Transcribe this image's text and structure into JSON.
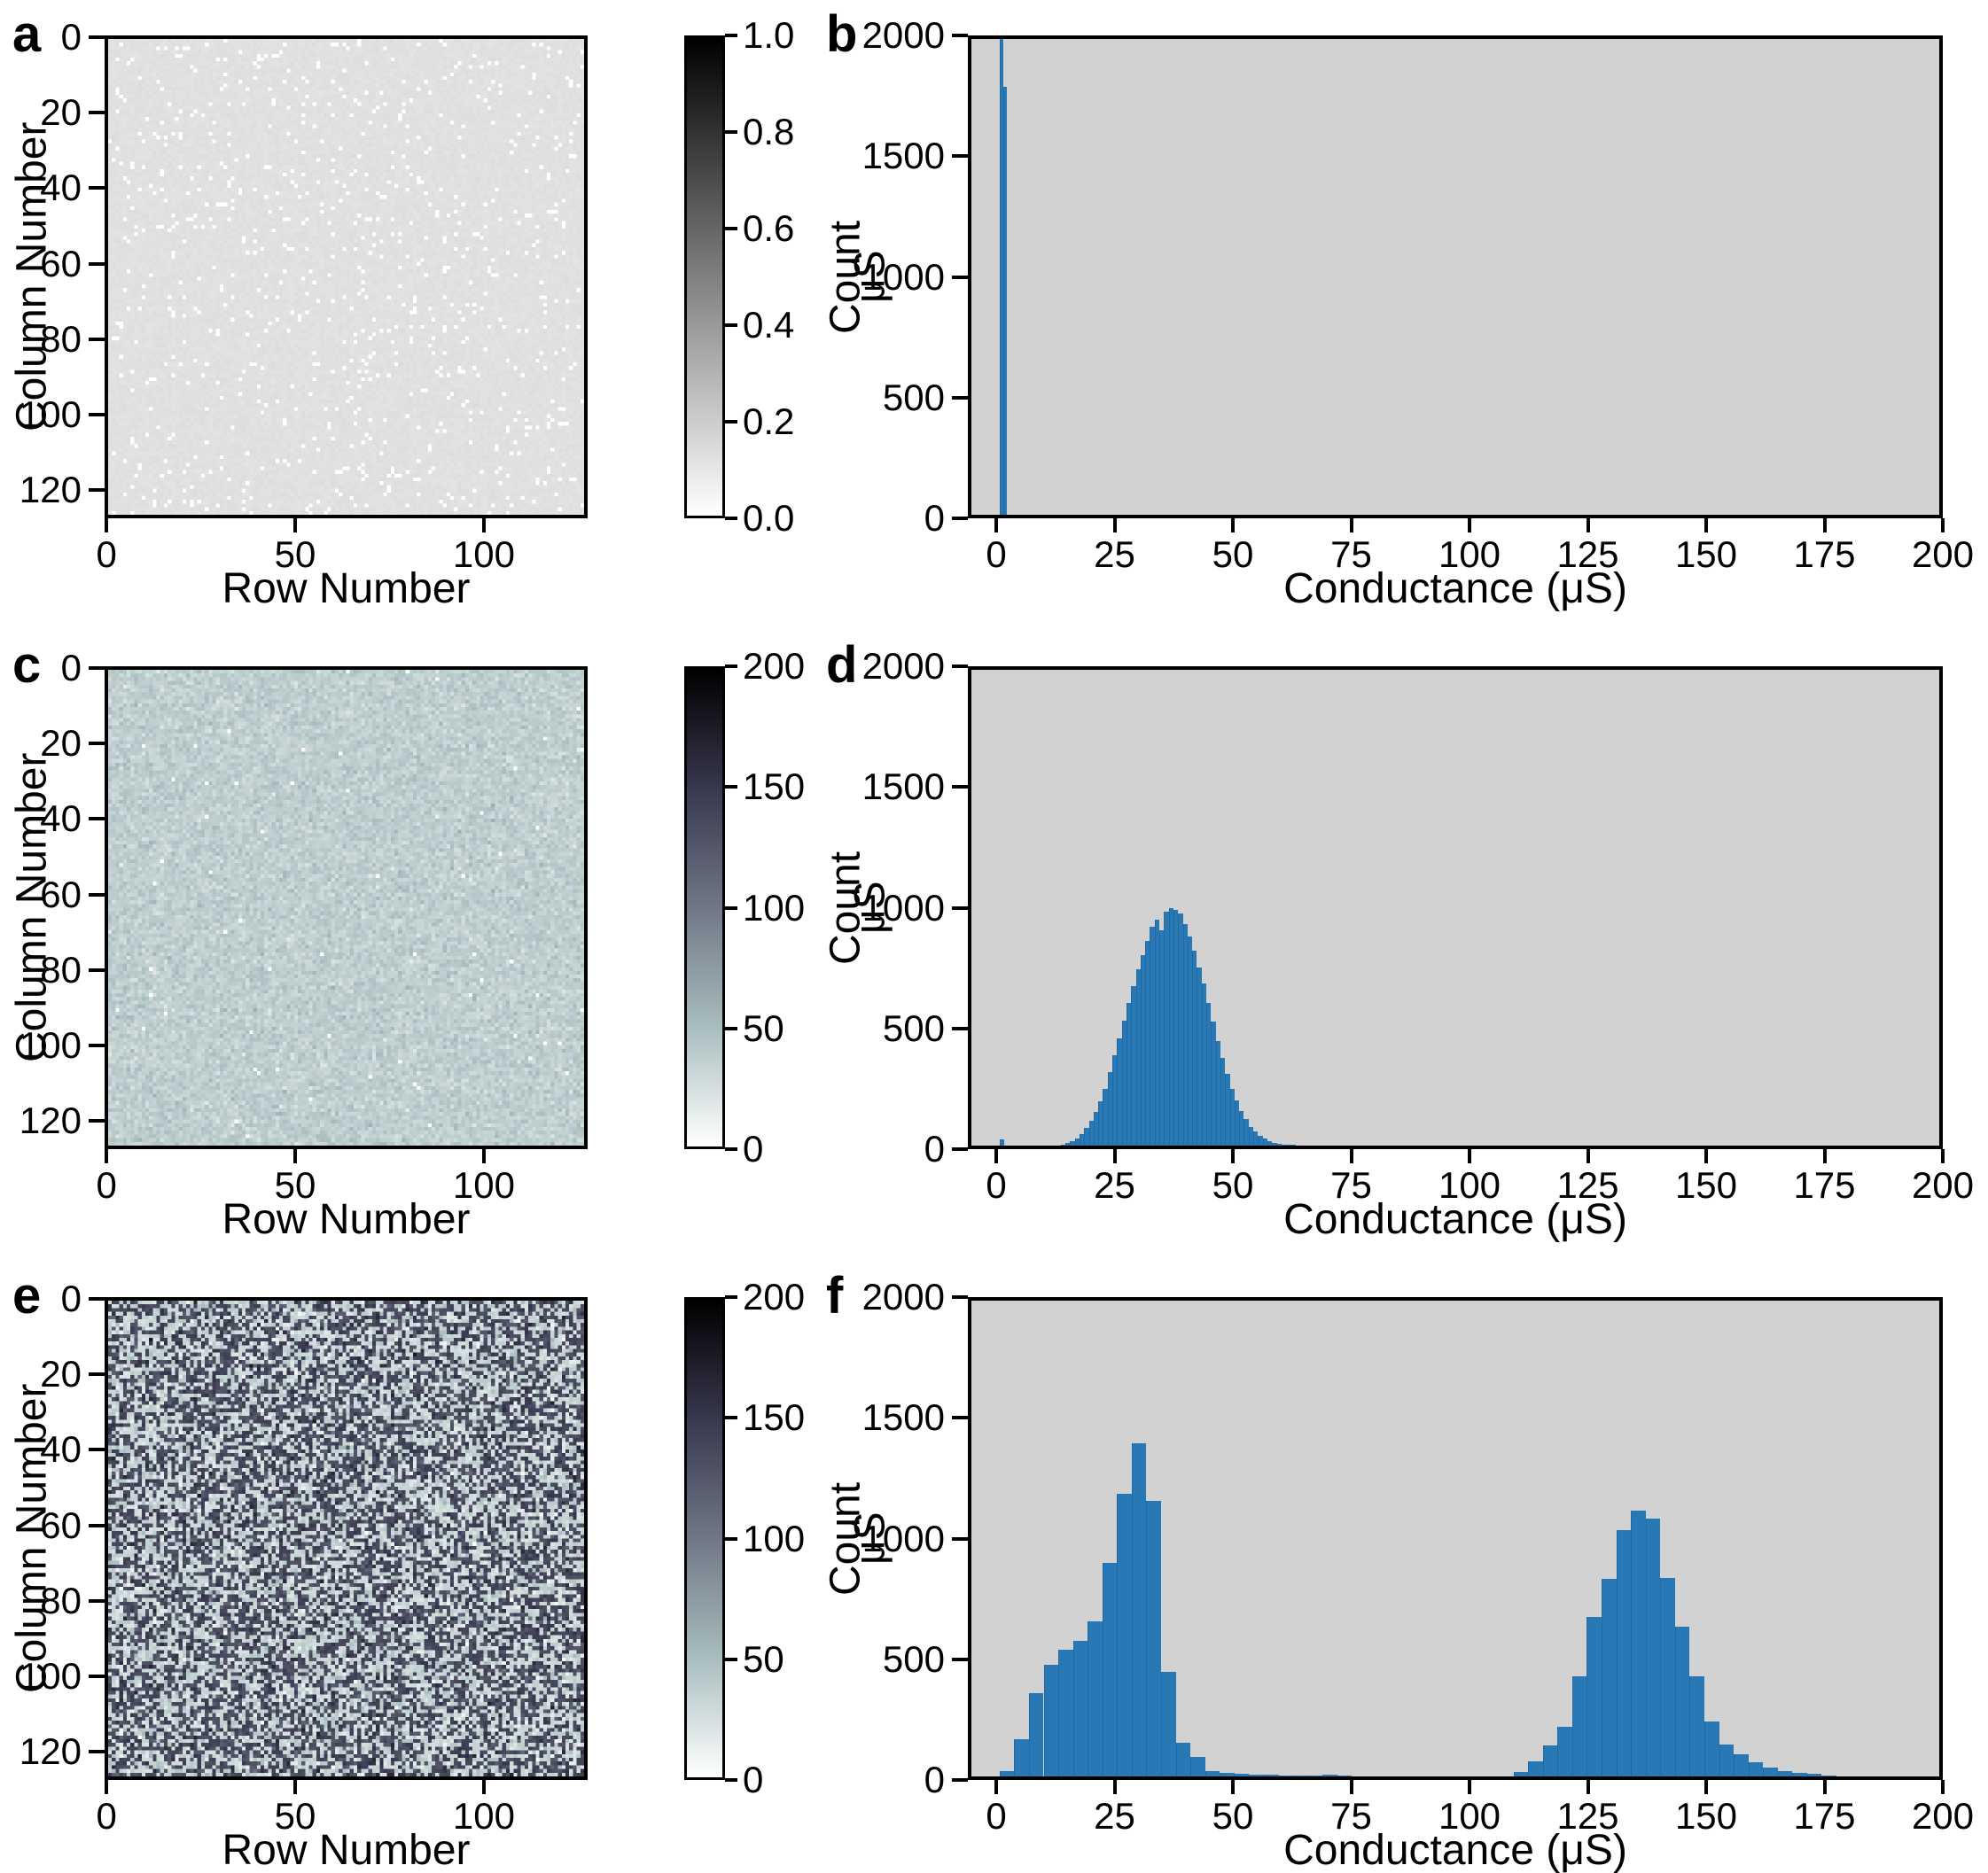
{
  "figure": {
    "description": "Six-panel scientific figure: three 128x128 conductance heatmaps (a, c, e) with colorbars, each paired with a conductance histogram (b, d, f)",
    "accent_bar_color": "#2878b5",
    "hist_background_color": "#d2d2d2",
    "colormaps": {
      "gray_r": [
        [
          0,
          "#ffffff"
        ],
        [
          1,
          "#000000"
        ]
      ],
      "bone_r": [
        [
          0,
          "#ffffff"
        ],
        [
          0.25,
          "#a8bdbe"
        ],
        [
          0.5,
          "#707786"
        ],
        [
          0.75,
          "#38384e"
        ],
        [
          1,
          "#000000"
        ]
      ]
    }
  },
  "panels": [
    {
      "label": "a",
      "type": "heatmap",
      "xlabel": "Row Number",
      "ylabel": "Column Number",
      "xticks": [
        {
          "v": 0,
          "label": "0"
        },
        {
          "v": 50,
          "label": "50"
        },
        {
          "v": 100,
          "label": "100"
        }
      ],
      "yticks": [
        {
          "v": 0,
          "label": "0"
        },
        {
          "v": 20,
          "label": "20"
        },
        {
          "v": 40,
          "label": "40"
        },
        {
          "v": 60,
          "label": "60"
        },
        {
          "v": 80,
          "label": "80"
        },
        {
          "v": 100,
          "label": "100"
        },
        {
          "v": 120,
          "label": "120"
        }
      ],
      "grid_size": 128,
      "colorbar": {
        "label": "μS",
        "colormap": "gray_r",
        "vmin": 0,
        "vmax": 1,
        "ticks": [
          {
            "v": 0,
            "label": "0.0"
          },
          {
            "v": 0.2,
            "label": "0.2"
          },
          {
            "v": 0.4,
            "label": "0.4"
          },
          {
            "v": 0.6,
            "label": "0.6"
          },
          {
            "v": 0.8,
            "label": "0.8"
          },
          {
            "v": 1.0,
            "label": "1.0"
          }
        ]
      }
    },
    {
      "label": "b",
      "type": "hist",
      "xlabel": "Conductance (μS)",
      "ylabel": "Count",
      "xlim": [
        -6,
        200
      ],
      "ylim": [
        0,
        2000
      ],
      "xticks": [
        {
          "v": 0,
          "label": "0"
        },
        {
          "v": 25,
          "label": "25"
        },
        {
          "v": 50,
          "label": "50"
        },
        {
          "v": 75,
          "label": "75"
        },
        {
          "v": 100,
          "label": "100"
        },
        {
          "v": 125,
          "label": "125"
        },
        {
          "v": 150,
          "label": "150"
        },
        {
          "v": 175,
          "label": "175"
        },
        {
          "v": 200,
          "label": "200"
        }
      ],
      "yticks": [
        {
          "v": 0,
          "label": "0"
        },
        {
          "v": 500,
          "label": "500"
        },
        {
          "v": 1000,
          "label": "1000"
        },
        {
          "v": 1500,
          "label": "1500"
        },
        {
          "v": 2000,
          "label": "2000"
        }
      ]
    },
    {
      "label": "c",
      "type": "heatmap",
      "xlabel": "Row Number",
      "ylabel": "Column Number",
      "xticks": [
        {
          "v": 0,
          "label": "0"
        },
        {
          "v": 50,
          "label": "50"
        },
        {
          "v": 100,
          "label": "100"
        }
      ],
      "yticks": [
        {
          "v": 0,
          "label": "0"
        },
        {
          "v": 20,
          "label": "20"
        },
        {
          "v": 40,
          "label": "40"
        },
        {
          "v": 60,
          "label": "60"
        },
        {
          "v": 80,
          "label": "80"
        },
        {
          "v": 100,
          "label": "100"
        },
        {
          "v": 120,
          "label": "120"
        }
      ],
      "grid_size": 128,
      "colorbar": {
        "label": "μS",
        "colormap": "bone_r",
        "vmin": 0,
        "vmax": 200,
        "ticks": [
          {
            "v": 0,
            "label": "0"
          },
          {
            "v": 50,
            "label": "50"
          },
          {
            "v": 100,
            "label": "100"
          },
          {
            "v": 150,
            "label": "150"
          },
          {
            "v": 200,
            "label": "200"
          }
        ]
      }
    },
    {
      "label": "d",
      "type": "hist",
      "xlabel": "Conductance (μS)",
      "ylabel": "Count",
      "xlim": [
        -6,
        200
      ],
      "ylim": [
        0,
        2000
      ],
      "xticks": [
        {
          "v": 0,
          "label": "0"
        },
        {
          "v": 25,
          "label": "25"
        },
        {
          "v": 50,
          "label": "50"
        },
        {
          "v": 75,
          "label": "75"
        },
        {
          "v": 100,
          "label": "100"
        },
        {
          "v": 125,
          "label": "125"
        },
        {
          "v": 150,
          "label": "150"
        },
        {
          "v": 175,
          "label": "175"
        },
        {
          "v": 200,
          "label": "200"
        }
      ],
      "yticks": [
        {
          "v": 0,
          "label": "0"
        },
        {
          "v": 500,
          "label": "500"
        },
        {
          "v": 1000,
          "label": "1000"
        },
        {
          "v": 1500,
          "label": "1500"
        },
        {
          "v": 2000,
          "label": "2000"
        }
      ]
    },
    {
      "label": "e",
      "type": "heatmap",
      "xlabel": "Row Number",
      "ylabel": "Column Number",
      "xticks": [
        {
          "v": 0,
          "label": "0"
        },
        {
          "v": 50,
          "label": "50"
        },
        {
          "v": 100,
          "label": "100"
        }
      ],
      "yticks": [
        {
          "v": 0,
          "label": "0"
        },
        {
          "v": 20,
          "label": "20"
        },
        {
          "v": 40,
          "label": "40"
        },
        {
          "v": 60,
          "label": "60"
        },
        {
          "v": 80,
          "label": "80"
        },
        {
          "v": 100,
          "label": "100"
        },
        {
          "v": 120,
          "label": "120"
        }
      ],
      "grid_size": 128,
      "colorbar": {
        "label": "μS",
        "colormap": "bone_r",
        "vmin": 0,
        "vmax": 200,
        "ticks": [
          {
            "v": 0,
            "label": "0"
          },
          {
            "v": 50,
            "label": "50"
          },
          {
            "v": 100,
            "label": "100"
          },
          {
            "v": 150,
            "label": "150"
          },
          {
            "v": 200,
            "label": "200"
          }
        ]
      }
    },
    {
      "label": "f",
      "type": "hist",
      "xlabel": "Conductance (μS)",
      "ylabel": "Count",
      "xlim": [
        -6,
        200
      ],
      "ylim": [
        0,
        2000
      ],
      "xticks": [
        {
          "v": 0,
          "label": "0"
        },
        {
          "v": 25,
          "label": "25"
        },
        {
          "v": 50,
          "label": "50"
        },
        {
          "v": 75,
          "label": "75"
        },
        {
          "v": 100,
          "label": "100"
        },
        {
          "v": 125,
          "label": "125"
        },
        {
          "v": 150,
          "label": "150"
        },
        {
          "v": 175,
          "label": "175"
        },
        {
          "v": 200,
          "label": "200"
        }
      ],
      "yticks": [
        {
          "v": 0,
          "label": "0"
        },
        {
          "v": 500,
          "label": "500"
        },
        {
          "v": 1000,
          "label": "1000"
        },
        {
          "v": 1500,
          "label": "1500"
        },
        {
          "v": 2000,
          "label": "2000"
        }
      ]
    }
  ],
  "chart_data": [
    {
      "panel": "a",
      "type": "heatmap",
      "grid": [
        128,
        128
      ],
      "units": "μS",
      "vmin": 0,
      "vmax": 1,
      "colormap": "gray_r",
      "seed": 11,
      "pattern": {
        "kind": "uniform_defects",
        "background_value": 0.12,
        "background_noise": 0.012,
        "defect_value": 0,
        "defect_fraction": 0.05
      },
      "summary": "Nearly uniform light-gray map (~0.12 uS) with ~5% randomly scattered white zero-conductance cells"
    },
    {
      "panel": "b",
      "type": "bar",
      "units": "μS",
      "bars": [
        [
          0,
          0.8,
          2000
        ],
        [
          0.8,
          1.6,
          1800
        ]
      ],
      "clipped_at_top": true,
      "summary": "Single narrow spike at 0 uS; tallest bin clipped at y-axis maximum 2000, adjacent bin ~1800"
    },
    {
      "panel": "c",
      "type": "heatmap",
      "grid": [
        128,
        128
      ],
      "units": "μS",
      "vmin": 0,
      "vmax": 200,
      "colormap": "bone_r",
      "seed": 22,
      "pattern": {
        "kind": "normal",
        "mean": 37,
        "sd": 6.6,
        "white_speck_fraction": 0.004
      },
      "summary": "Speckled teal map, conductances normally distributed around ~37 uS"
    },
    {
      "panel": "d",
      "type": "bar",
      "units": "μS",
      "bin_start": 13,
      "bin_width": 1,
      "counts": [
        5,
        10,
        18,
        30,
        50,
        75,
        105,
        140,
        185,
        240,
        310,
        380,
        450,
        525,
        600,
        670,
        740,
        800,
        860,
        920,
        950,
        905,
        985,
        1000,
        990,
        975,
        930,
        880,
        820,
        750,
        680,
        600,
        520,
        440,
        370,
        300,
        240,
        190,
        145,
        110,
        80,
        58,
        40,
        28,
        18,
        12,
        8,
        5,
        3,
        2
      ],
      "extra_bars": [
        [
          0,
          1,
          25
        ]
      ],
      "summary": "Gaussian peak centered ~36-37 uS, max ~1000 counts, spanning ~14-62 uS, tiny bar at 0"
    },
    {
      "panel": "e",
      "type": "heatmap",
      "grid": [
        128,
        128
      ],
      "units": "μS",
      "vmin": 0,
      "vmax": 200,
      "colormap": "bone_r",
      "seed": 33,
      "pattern": {
        "kind": "bimodal",
        "low_mean": 31,
        "low_sd": 9,
        "high_mean": 137,
        "high_sd": 11,
        "high_fraction": 0.5
      },
      "summary": "Random ~50/50 mixture of light-teal (~31 uS) and dark-slate (~137 uS) cells"
    },
    {
      "panel": "f",
      "type": "bar",
      "units": "μS",
      "bin_start": 0,
      "bin_width": 3.125,
      "counts": [
        22,
        157,
        352,
        471,
        531,
        569,
        651,
        898,
        1190,
        1400,
        1160,
        441,
        142,
        82,
        22,
        15,
        10,
        8,
        6,
        5,
        5,
        4,
        8,
        3,
        0,
        0,
        0,
        0,
        0,
        0,
        0,
        0,
        0,
        0,
        0,
        20,
        65,
        130,
        210,
        420,
        670,
        830,
        1035,
        1117,
        1085,
        833,
        630,
        420,
        232,
        135,
        95,
        60,
        37,
        22,
        15,
        10,
        5
      ],
      "summary": "Bimodal histogram: first mode peaks ~1400 counts near 30 uS, second mode peaks ~1120 counts near 136 uS"
    }
  ]
}
